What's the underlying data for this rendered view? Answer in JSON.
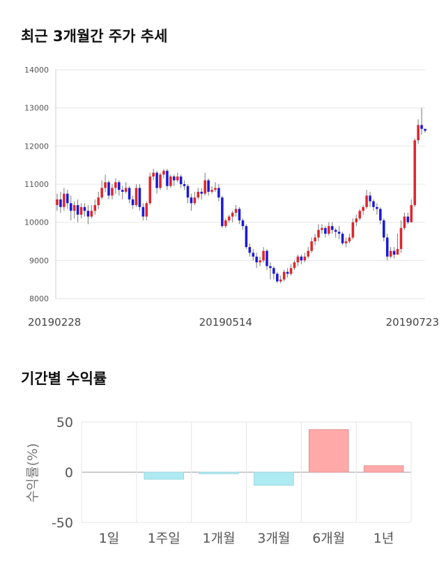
{
  "titles": {
    "price_trend": "최근 3개월간 주가 추세",
    "period_returns": "기간별 수익률"
  },
  "colors": {
    "up": "#e0262b",
    "down": "#1a1ad6",
    "bar_positive": "#ffa9a9",
    "bar_negative": "#aeeaf2",
    "grid": "#e6e6e6"
  },
  "chart_data": [
    {
      "type": "candlestick",
      "title": "최근 3개월간 주가 추세",
      "ylim": [
        8000,
        14000
      ],
      "yticks": [
        8000,
        9000,
        10000,
        11000,
        12000,
        13000,
        14000
      ],
      "xtick_labels": [
        "20190228",
        "20190514",
        "20190723"
      ],
      "xtick_index": [
        0,
        49,
        98
      ],
      "grid": true,
      "candles": [
        [
          10450,
          10600,
          10750,
          10300
        ],
        [
          10600,
          10400,
          10800,
          10250
        ],
        [
          10400,
          10750,
          10900,
          10300
        ],
        [
          10750,
          10500,
          10850,
          10350
        ],
        [
          10500,
          10300,
          10700,
          10050
        ],
        [
          10300,
          10450,
          10550,
          10100
        ],
        [
          10450,
          10200,
          10600,
          10000
        ],
        [
          10200,
          10400,
          10500,
          10100
        ],
        [
          10400,
          10300,
          10500,
          10150
        ],
        [
          10300,
          10150,
          10450,
          9950
        ],
        [
          10150,
          10300,
          10450,
          10100
        ],
        [
          10300,
          10450,
          10600,
          10200
        ],
        [
          10450,
          10650,
          10800,
          10350
        ],
        [
          10650,
          10900,
          11100,
          10600
        ],
        [
          10900,
          11050,
          11250,
          10800
        ],
        [
          11050,
          10700,
          11100,
          10600
        ],
        [
          10700,
          10900,
          11000,
          10600
        ],
        [
          10900,
          11050,
          11150,
          10750
        ],
        [
          11050,
          10850,
          11100,
          10700
        ],
        [
          10850,
          10800,
          10950,
          10600
        ],
        [
          10800,
          10900,
          11050,
          10750
        ],
        [
          10900,
          10600,
          10950,
          10500
        ],
        [
          10600,
          10450,
          10700,
          10350
        ],
        [
          10450,
          10900,
          11000,
          10400
        ],
        [
          10900,
          10400,
          11000,
          10300
        ],
        [
          10400,
          10150,
          10500,
          10050
        ],
        [
          10150,
          10500,
          10550,
          10050
        ],
        [
          10500,
          11200,
          11300,
          10450
        ],
        [
          11200,
          11300,
          11400,
          11100
        ],
        [
          11300,
          10900,
          11350,
          10750
        ],
        [
          10900,
          11250,
          11300,
          10850
        ],
        [
          11250,
          11350,
          11400,
          11150
        ],
        [
          11350,
          10950,
          11400,
          10850
        ],
        [
          10950,
          11200,
          11250,
          10900
        ],
        [
          11200,
          11100,
          11250,
          10950
        ],
        [
          11100,
          11200,
          11300,
          11050
        ],
        [
          11200,
          11000,
          11250,
          10900
        ],
        [
          11000,
          10950,
          11100,
          10850
        ],
        [
          10950,
          10650,
          11000,
          10500
        ],
        [
          10650,
          10500,
          10750,
          10300
        ],
        [
          10500,
          10650,
          10800,
          10450
        ],
        [
          10650,
          10800,
          10900,
          10600
        ],
        [
          10800,
          10750,
          10900,
          10600
        ],
        [
          10750,
          11100,
          11300,
          10700
        ],
        [
          11100,
          10800,
          11150,
          10700
        ],
        [
          10800,
          10850,
          10950,
          10750
        ],
        [
          10850,
          10900,
          11050,
          10800
        ],
        [
          10900,
          10650,
          11000,
          10550
        ],
        [
          10650,
          9900,
          10700,
          9850
        ],
        [
          9900,
          10050,
          10100,
          9850
        ],
        [
          10050,
          10150,
          10200,
          10000
        ],
        [
          10150,
          10250,
          10300,
          10000
        ],
        [
          10250,
          10350,
          10450,
          10150
        ],
        [
          10350,
          10050,
          10400,
          9950
        ],
        [
          10050,
          9900,
          10100,
          9800
        ],
        [
          9900,
          9350,
          9950,
          9300
        ],
        [
          9350,
          9200,
          9450,
          9100
        ],
        [
          9200,
          9100,
          9300,
          9000
        ],
        [
          9100,
          8950,
          9200,
          8800
        ],
        [
          8950,
          9000,
          9100,
          8850
        ],
        [
          9000,
          9250,
          9350,
          8950
        ],
        [
          9250,
          8850,
          9300,
          8750
        ],
        [
          8850,
          8800,
          8950,
          8500
        ],
        [
          8800,
          8650,
          8850,
          8500
        ],
        [
          8650,
          8450,
          8700,
          8400
        ],
        [
          8450,
          8500,
          8600,
          8400
        ],
        [
          8500,
          8700,
          8750,
          8450
        ],
        [
          8700,
          8650,
          8800,
          8550
        ],
        [
          8650,
          8800,
          8900,
          8600
        ],
        [
          8800,
          8950,
          9000,
          8750
        ],
        [
          8950,
          9100,
          9150,
          8850
        ],
        [
          9100,
          9000,
          9150,
          8900
        ],
        [
          9000,
          9100,
          9200,
          8950
        ],
        [
          9100,
          9250,
          9350,
          9050
        ],
        [
          9250,
          9500,
          9600,
          9200
        ],
        [
          9500,
          9600,
          9700,
          9400
        ],
        [
          9600,
          9800,
          9950,
          9500
        ],
        [
          9800,
          9850,
          9950,
          9700
        ],
        [
          9850,
          9700,
          9900,
          9600
        ],
        [
          9700,
          9900,
          10000,
          9650
        ],
        [
          9900,
          9800,
          10000,
          9700
        ],
        [
          9800,
          9750,
          9850,
          9600
        ],
        [
          9750,
          9700,
          9900,
          9550
        ],
        [
          9700,
          9450,
          9750,
          9400
        ],
        [
          9450,
          9500,
          9600,
          9350
        ],
        [
          9500,
          9600,
          9700,
          9450
        ],
        [
          9600,
          10000,
          10100,
          9550
        ],
        [
          10000,
          10100,
          10200,
          9900
        ],
        [
          10100,
          10300,
          10350,
          10050
        ],
        [
          10300,
          10400,
          10450,
          10200
        ],
        [
          10400,
          10700,
          10850,
          10350
        ],
        [
          10700,
          10550,
          10800,
          10400
        ],
        [
          10550,
          10400,
          10600,
          10300
        ],
        [
          10400,
          10350,
          10500,
          10200
        ],
        [
          10350,
          10050,
          10400,
          9950
        ],
        [
          10050,
          9600,
          10100,
          9500
        ],
        [
          9600,
          9100,
          9700,
          9000
        ],
        [
          9100,
          9250,
          9350,
          9050
        ],
        [
          9250,
          9150,
          9350,
          9050
        ],
        [
          9150,
          9300,
          9700,
          9250
        ],
        [
          9300,
          9850,
          10050,
          9200
        ],
        [
          9850,
          10150,
          10250,
          9800
        ],
        [
          10150,
          10000,
          10250,
          9950
        ],
        [
          10000,
          10450,
          10600,
          10000
        ],
        [
          10450,
          12150,
          12200,
          10400
        ],
        [
          12150,
          12550,
          12700,
          12050
        ],
        [
          12550,
          12450,
          13000,
          12300
        ],
        [
          12450,
          12400,
          12450,
          12350
        ]
      ]
    },
    {
      "type": "bar",
      "ylabel": "수익률(%)",
      "ylim": [
        -50,
        50
      ],
      "yticks": [
        50,
        0,
        -50
      ],
      "categories": [
        "1일",
        "1주일",
        "1개월",
        "3개월",
        "6개월",
        "1년"
      ],
      "values": [
        0,
        -7,
        -1.5,
        -13,
        42.5,
        6.5
      ],
      "grid": true
    }
  ]
}
